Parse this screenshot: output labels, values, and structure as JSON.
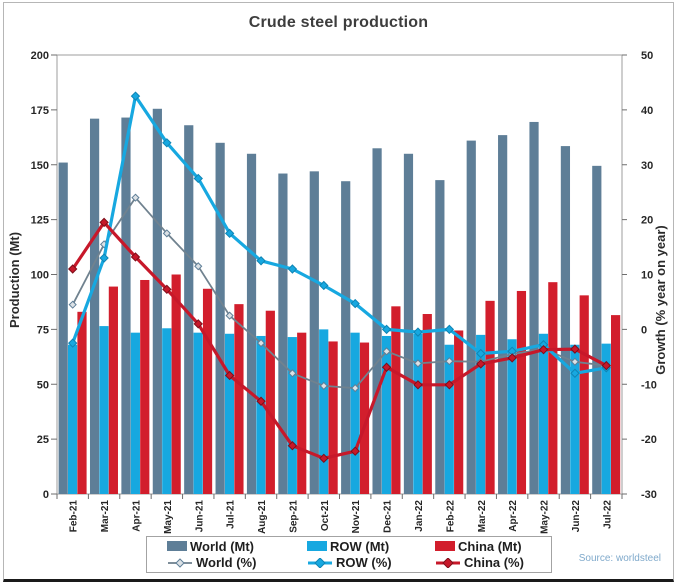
{
  "chart_data": {
    "type": "bar",
    "title": "Crude steel production",
    "source": "Source: worldsteel",
    "grid": false,
    "legend_position": "bottom",
    "categories": [
      "Feb-21",
      "Mar-21",
      "Apr-21",
      "May-21",
      "Jun-21",
      "Jul-21",
      "Aug-21",
      "Sep-21",
      "Oct-21",
      "Nov-21",
      "Dec-21",
      "Jan-22",
      "Feb-22",
      "Mar-22",
      "Apr-22",
      "May-22",
      "Jun-22",
      "Jul-22"
    ],
    "left_axis": {
      "label": "Production (Mt)",
      "min": 0,
      "max": 200,
      "step": 25
    },
    "right_axis": {
      "label": "Growth (% year on year)",
      "min": -30,
      "max": 50,
      "step": 10
    },
    "bar_series": [
      {
        "name": "World (Mt)",
        "axis": "left",
        "color": "#5E7E97",
        "values": [
          151,
          171,
          171.5,
          175.5,
          168,
          160,
          155,
          146,
          147,
          142.5,
          157.5,
          155,
          143,
          161,
          163.5,
          169.5,
          158.5,
          149.5
        ]
      },
      {
        "name": "ROW (Mt)",
        "axis": "left",
        "color": "#17A8E0",
        "values": [
          68,
          76.5,
          73.5,
          75.5,
          73.5,
          73,
          72,
          71.5,
          75,
          73.5,
          72,
          73,
          68,
          72.5,
          70.5,
          73,
          68,
          68.5
        ]
      },
      {
        "name": "China (Mt)",
        "axis": "left",
        "color": "#D21E2C",
        "values": [
          83,
          94.5,
          97.5,
          100,
          93.5,
          86.5,
          83.5,
          73.5,
          69.5,
          69,
          85.5,
          82,
          74.5,
          88,
          92.5,
          96.5,
          90.5,
          81.5
        ]
      }
    ],
    "line_series": [
      {
        "name": "World (%)",
        "axis": "right",
        "color": "#70828F",
        "marker_fill": "#DCE1E5",
        "values": [
          4.5,
          15.5,
          24,
          17.5,
          11.5,
          2.5,
          -2.5,
          -8,
          -10.3,
          -10.7,
          -4,
          -6.2,
          -5.8,
          -5.9,
          -4.5,
          -3.6,
          -5.9,
          -6.6
        ]
      },
      {
        "name": "ROW (%)",
        "axis": "right",
        "color": "#17A8E0",
        "marker_fill": "#17A8E0",
        "values": [
          -2.5,
          13,
          42.5,
          34,
          27.5,
          17.5,
          12.5,
          11,
          8,
          4.7,
          0,
          -0.5,
          0,
          -4.4,
          -4,
          -2.8,
          -8,
          -7
        ]
      },
      {
        "name": "China (%)",
        "axis": "right",
        "color": "#C7182A",
        "marker_fill": "#C7182A",
        "values": [
          11,
          19.5,
          13.2,
          7.3,
          1,
          -8.4,
          -13.1,
          -21.2,
          -23.5,
          -22.2,
          -6.9,
          -10.1,
          -10.1,
          -6.3,
          -5.2,
          -3.7,
          -3.6,
          -6.6
        ]
      }
    ]
  }
}
